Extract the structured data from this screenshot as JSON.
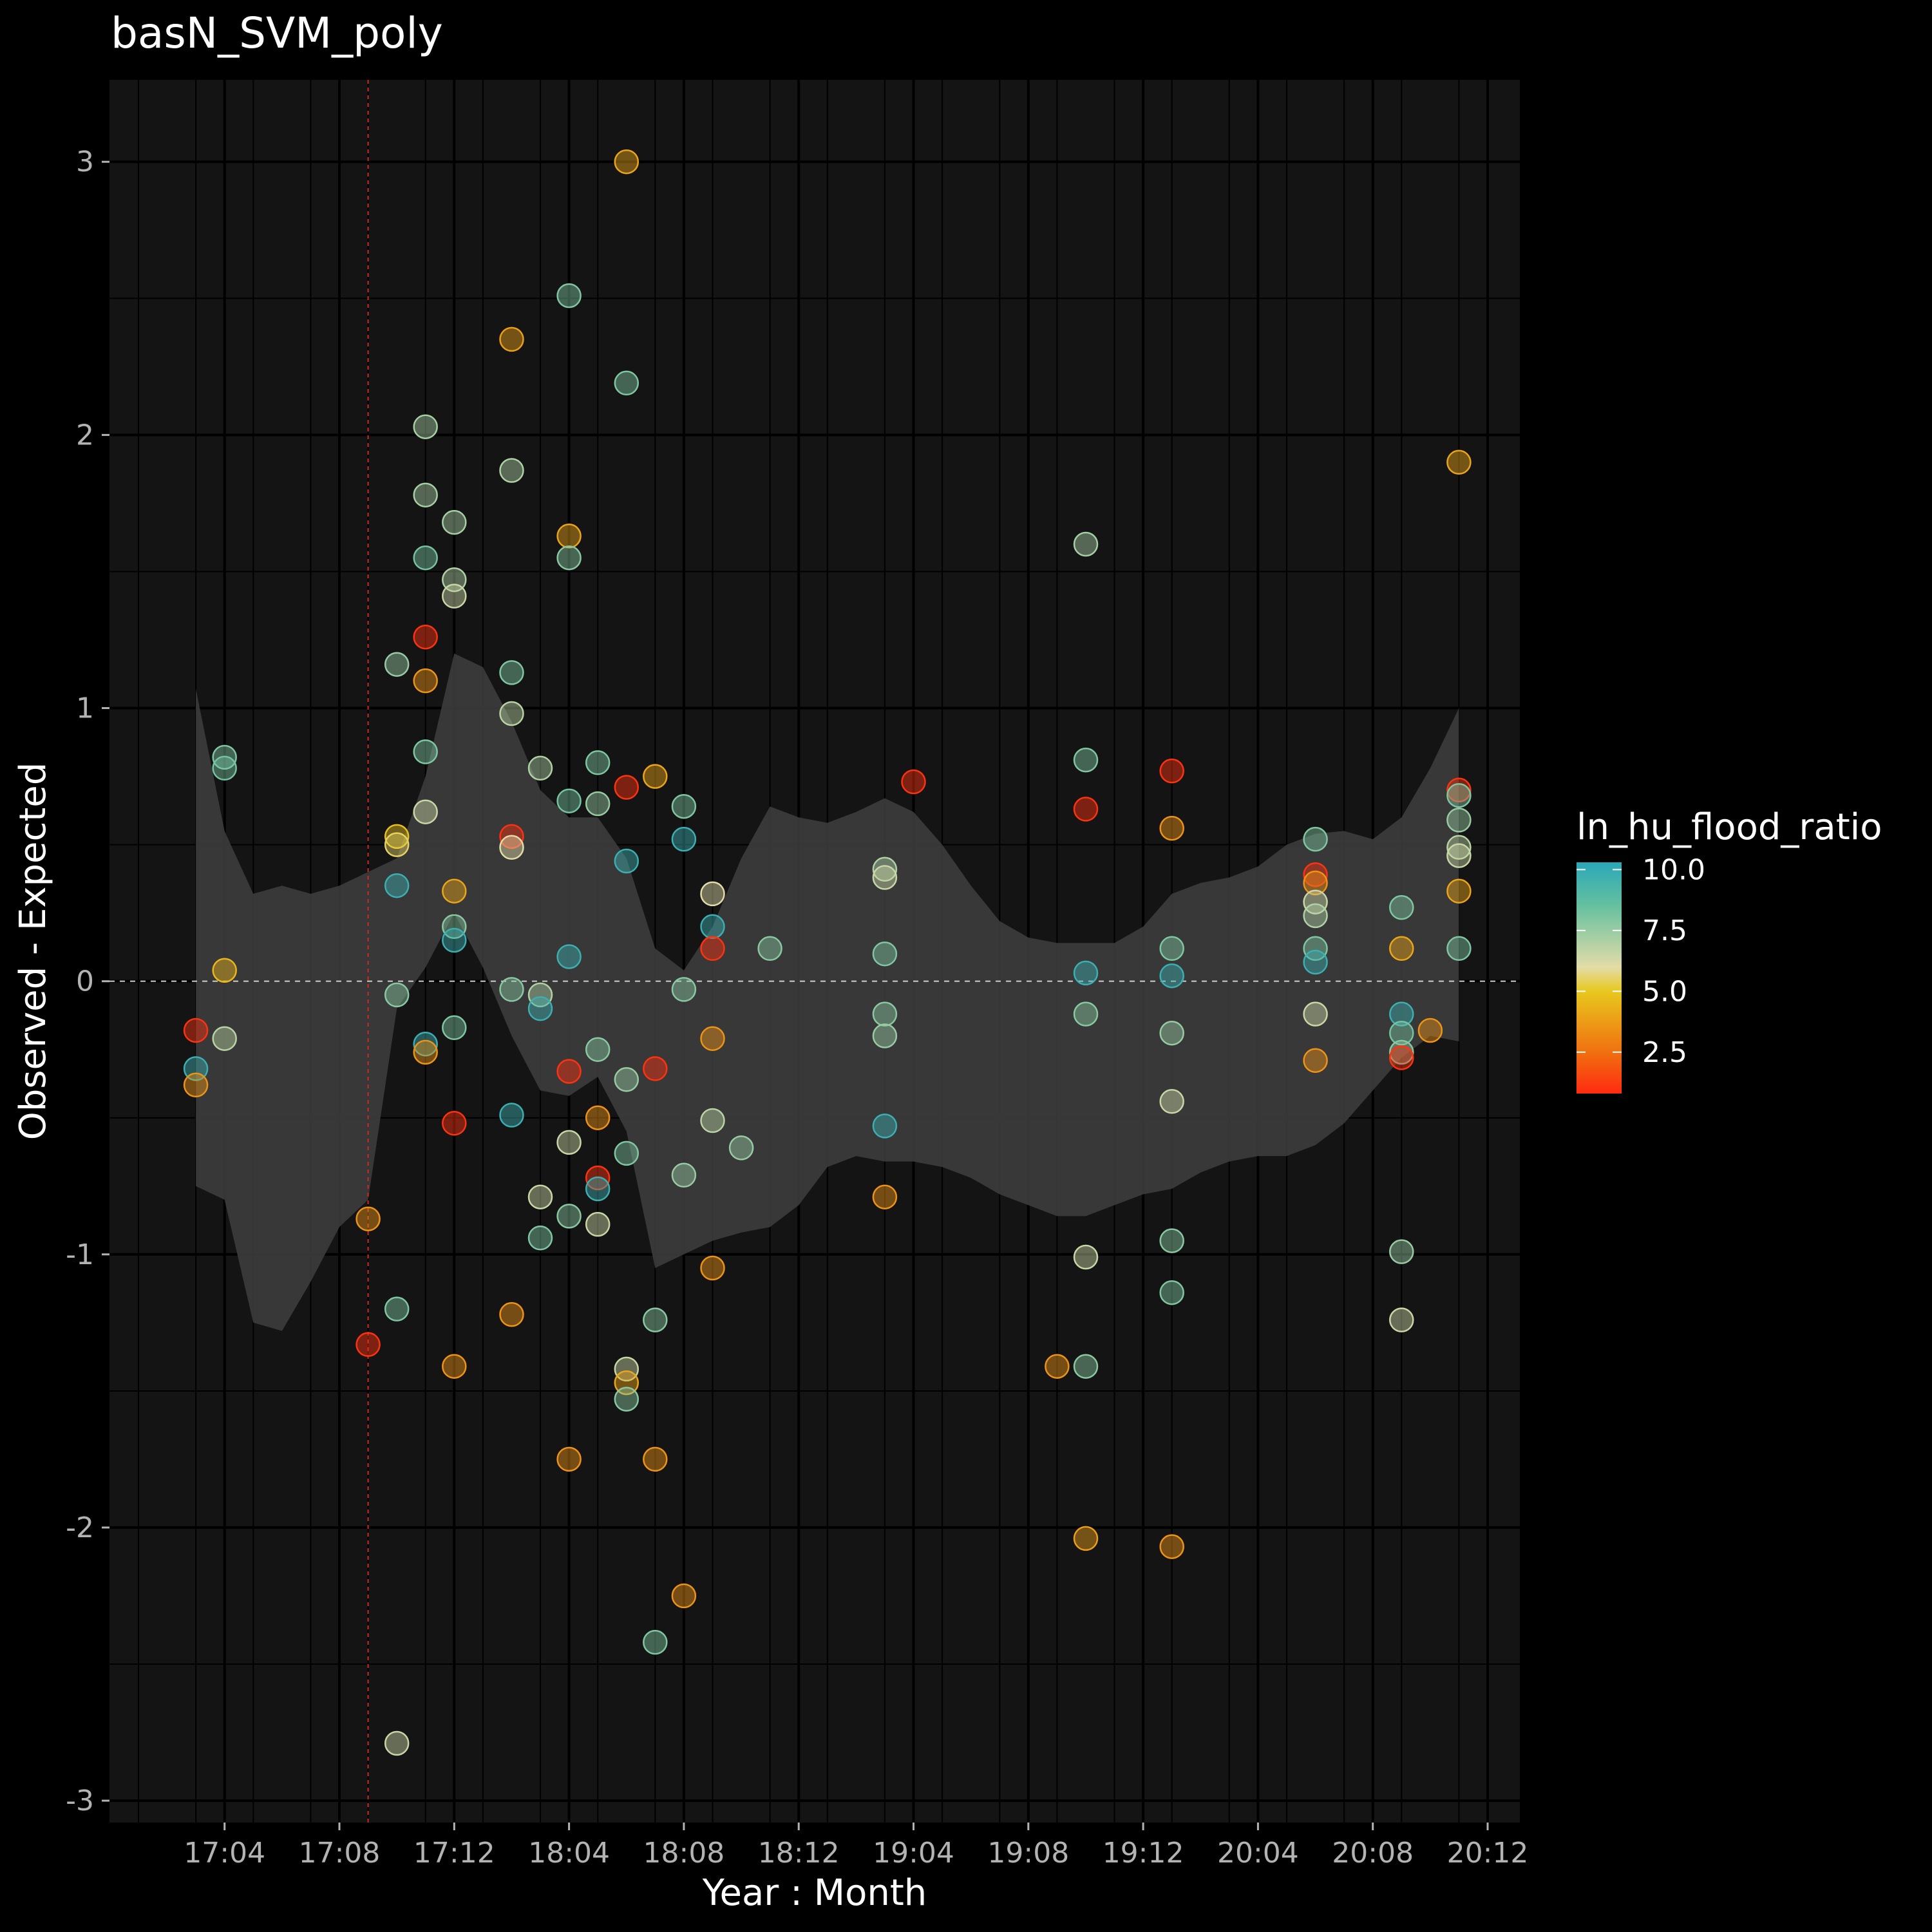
{
  "chart_data": {
    "type": "scatter",
    "title": "basN_SVM_poly",
    "xlabel": "Year : Month",
    "ylabel": "Observed - Expected",
    "x_tick_labels": [
      "17:04",
      "17:08",
      "17:12",
      "18:04",
      "18:08",
      "18:12",
      "19:04",
      "19:08",
      "19:12",
      "20:04",
      "20:08",
      "20:12"
    ],
    "x_ticks": [
      "2017-04",
      "2017-08",
      "2017-12",
      "2018-04",
      "2018-08",
      "2018-12",
      "2019-04",
      "2019-08",
      "2019-12",
      "2020-04",
      "2020-08",
      "2020-12"
    ],
    "xlim": [
      "2017-01",
      "2020-12"
    ],
    "y_ticks": [
      -3,
      -2,
      -1,
      0,
      1,
      2,
      3
    ],
    "y_tick_labels": [
      "-3",
      "-2",
      "-1",
      "0",
      "1",
      "2",
      "3"
    ],
    "ylim": [
      -3.08,
      3.3
    ],
    "grid": true,
    "reference_hline": 0,
    "reference_vline": "2017-09",
    "color_variable": "ln_hu_flood_ratio",
    "legend": {
      "title": "ln_hu_flood_ratio",
      "position": "right",
      "ticks": [
        2.5,
        5.0,
        7.5,
        10.0
      ],
      "tick_labels": [
        "2.5",
        "5.0",
        "7.5",
        "10.0"
      ],
      "range": [
        0.8,
        10.3
      ],
      "colors": [
        {
          "value": 0.8,
          "color": "#ff2a10"
        },
        {
          "value": 2.5,
          "color": "#f07010"
        },
        {
          "value": 5.0,
          "color": "#e8c81e"
        },
        {
          "value": 6.0,
          "color": "#e2dca8"
        },
        {
          "value": 8.5,
          "color": "#66c0a0"
        },
        {
          "value": 10.3,
          "color": "#2aa8b8"
        }
      ]
    },
    "band": [
      {
        "x": "2017-03",
        "lower": -0.75,
        "upper": 1.07
      },
      {
        "x": "2017-04",
        "lower": -0.8,
        "upper": 0.55
      },
      {
        "x": "2017-05",
        "lower": -1.25,
        "upper": 0.32
      },
      {
        "x": "2017-06",
        "lower": -1.28,
        "upper": 0.35
      },
      {
        "x": "2017-07",
        "lower": -1.1,
        "upper": 0.32
      },
      {
        "x": "2017-08",
        "lower": -0.9,
        "upper": 0.35
      },
      {
        "x": "2017-09",
        "lower": -0.8,
        "upper": 0.4
      },
      {
        "x": "2017-10",
        "lower": -0.1,
        "upper": 0.45
      },
      {
        "x": "2017-11",
        "lower": 0.05,
        "upper": 0.75
      },
      {
        "x": "2017-12",
        "lower": 0.25,
        "upper": 1.2
      },
      {
        "x": "2018-01",
        "lower": 0.05,
        "upper": 1.15
      },
      {
        "x": "2018-02",
        "lower": -0.2,
        "upper": 0.95
      },
      {
        "x": "2018-03",
        "lower": -0.4,
        "upper": 0.7
      },
      {
        "x": "2018-04",
        "lower": -0.42,
        "upper": 0.6
      },
      {
        "x": "2018-05",
        "lower": -0.35,
        "upper": 0.6
      },
      {
        "x": "2018-06",
        "lower": -0.55,
        "upper": 0.45
      },
      {
        "x": "2018-07",
        "lower": -1.05,
        "upper": 0.12
      },
      {
        "x": "2018-08",
        "lower": -1.0,
        "upper": 0.04
      },
      {
        "x": "2018-09",
        "lower": -0.95,
        "upper": 0.2
      },
      {
        "x": "2018-10",
        "lower": -0.92,
        "upper": 0.45
      },
      {
        "x": "2018-11",
        "lower": -0.9,
        "upper": 0.64
      },
      {
        "x": "2018-12",
        "lower": -0.82,
        "upper": 0.6
      },
      {
        "x": "2019-01",
        "lower": -0.68,
        "upper": 0.58
      },
      {
        "x": "2019-02",
        "lower": -0.64,
        "upper": 0.62
      },
      {
        "x": "2019-03",
        "lower": -0.66,
        "upper": 0.67
      },
      {
        "x": "2019-04",
        "lower": -0.66,
        "upper": 0.62
      },
      {
        "x": "2019-05",
        "lower": -0.68,
        "upper": 0.5
      },
      {
        "x": "2019-06",
        "lower": -0.72,
        "upper": 0.35
      },
      {
        "x": "2019-07",
        "lower": -0.78,
        "upper": 0.22
      },
      {
        "x": "2019-08",
        "lower": -0.82,
        "upper": 0.16
      },
      {
        "x": "2019-09",
        "lower": -0.86,
        "upper": 0.14
      },
      {
        "x": "2019-10",
        "lower": -0.86,
        "upper": 0.14
      },
      {
        "x": "2019-11",
        "lower": -0.82,
        "upper": 0.14
      },
      {
        "x": "2019-12",
        "lower": -0.78,
        "upper": 0.2
      },
      {
        "x": "2020-01",
        "lower": -0.76,
        "upper": 0.32
      },
      {
        "x": "2020-02",
        "lower": -0.7,
        "upper": 0.36
      },
      {
        "x": "2020-03",
        "lower": -0.66,
        "upper": 0.38
      },
      {
        "x": "2020-04",
        "lower": -0.64,
        "upper": 0.42
      },
      {
        "x": "2020-05",
        "lower": -0.64,
        "upper": 0.5
      },
      {
        "x": "2020-06",
        "lower": -0.6,
        "upper": 0.54
      },
      {
        "x": "2020-07",
        "lower": -0.52,
        "upper": 0.55
      },
      {
        "x": "2020-08",
        "lower": -0.4,
        "upper": 0.52
      },
      {
        "x": "2020-09",
        "lower": -0.28,
        "upper": 0.6
      },
      {
        "x": "2020-10",
        "lower": -0.2,
        "upper": 0.78
      },
      {
        "x": "2020-11",
        "lower": -0.22,
        "upper": 1.0
      }
    ],
    "points": [
      {
        "x": "2017-03",
        "y": -0.18,
        "c": 1.0
      },
      {
        "x": "2017-03",
        "y": -0.32,
        "c": 9.8
      },
      {
        "x": "2017-03",
        "y": -0.38,
        "c": 3.5
      },
      {
        "x": "2017-04",
        "y": 0.82,
        "c": 8.0
      },
      {
        "x": "2017-04",
        "y": 0.78,
        "c": 8.2
      },
      {
        "x": "2017-04",
        "y": 0.04,
        "c": 4.5
      },
      {
        "x": "2017-04",
        "y": -0.21,
        "c": 6.8
      },
      {
        "x": "2017-09",
        "y": -0.87,
        "c": 3.5
      },
      {
        "x": "2017-09",
        "y": -1.33,
        "c": 1.0
      },
      {
        "x": "2017-10",
        "y": 1.16,
        "c": 7.5
      },
      {
        "x": "2017-10",
        "y": 0.53,
        "c": 4.8
      },
      {
        "x": "2017-10",
        "y": 0.5,
        "c": 5.5
      },
      {
        "x": "2017-10",
        "y": 0.35,
        "c": 9.8
      },
      {
        "x": "2017-10",
        "y": -0.05,
        "c": 7.8
      },
      {
        "x": "2017-10",
        "y": -1.2,
        "c": 8.0
      },
      {
        "x": "2017-10",
        "y": -2.79,
        "c": 6.5
      },
      {
        "x": "2017-11",
        "y": 2.03,
        "c": 7.2
      },
      {
        "x": "2017-11",
        "y": 1.78,
        "c": 7.2
      },
      {
        "x": "2017-11",
        "y": 1.55,
        "c": 8.2
      },
      {
        "x": "2017-11",
        "y": 1.26,
        "c": 1.0
      },
      {
        "x": "2017-11",
        "y": 1.1,
        "c": 3.5
      },
      {
        "x": "2017-11",
        "y": 0.84,
        "c": 8.0
      },
      {
        "x": "2017-11",
        "y": 0.62,
        "c": 6.5
      },
      {
        "x": "2017-11",
        "y": -0.23,
        "c": 9.8
      },
      {
        "x": "2017-11",
        "y": -0.26,
        "c": 3.5
      },
      {
        "x": "2017-12",
        "y": 1.68,
        "c": 7.2
      },
      {
        "x": "2017-12",
        "y": 1.47,
        "c": 7.0
      },
      {
        "x": "2017-12",
        "y": 1.41,
        "c": 6.5
      },
      {
        "x": "2017-12",
        "y": 0.33,
        "c": 4.0
      },
      {
        "x": "2017-12",
        "y": 0.2,
        "c": 7.8
      },
      {
        "x": "2017-12",
        "y": 0.15,
        "c": 9.8
      },
      {
        "x": "2017-12",
        "y": -0.17,
        "c": 8.0
      },
      {
        "x": "2017-12",
        "y": -0.52,
        "c": 1.0
      },
      {
        "x": "2017-12",
        "y": -1.41,
        "c": 3.5
      },
      {
        "x": "2018-02",
        "y": 2.35,
        "c": 3.8
      },
      {
        "x": "2018-02",
        "y": 1.87,
        "c": 7.0
      },
      {
        "x": "2018-02",
        "y": 1.13,
        "c": 8.0
      },
      {
        "x": "2018-02",
        "y": 0.98,
        "c": 6.8
      },
      {
        "x": "2018-02",
        "y": 0.53,
        "c": 1.0
      },
      {
        "x": "2018-02",
        "y": 0.49,
        "c": 6.0
      },
      {
        "x": "2018-02",
        "y": -0.03,
        "c": 7.8
      },
      {
        "x": "2018-02",
        "y": -0.49,
        "c": 9.8
      },
      {
        "x": "2018-02",
        "y": -1.22,
        "c": 3.5
      },
      {
        "x": "2018-03",
        "y": 0.78,
        "c": 7.0
      },
      {
        "x": "2018-03",
        "y": -0.05,
        "c": 7.0
      },
      {
        "x": "2018-03",
        "y": -0.1,
        "c": 9.8
      },
      {
        "x": "2018-03",
        "y": -0.79,
        "c": 6.5
      },
      {
        "x": "2018-03",
        "y": -0.94,
        "c": 8.0
      },
      {
        "x": "2018-04",
        "y": 2.51,
        "c": 8.0
      },
      {
        "x": "2018-04",
        "y": 1.63,
        "c": 4.0
      },
      {
        "x": "2018-04",
        "y": 1.55,
        "c": 7.8
      },
      {
        "x": "2018-04",
        "y": 0.66,
        "c": 8.2
      },
      {
        "x": "2018-04",
        "y": 0.09,
        "c": 9.8
      },
      {
        "x": "2018-04",
        "y": -0.33,
        "c": 1.0
      },
      {
        "x": "2018-04",
        "y": -0.59,
        "c": 6.5
      },
      {
        "x": "2018-04",
        "y": -0.86,
        "c": 7.8
      },
      {
        "x": "2018-04",
        "y": -1.75,
        "c": 3.5
      },
      {
        "x": "2018-05",
        "y": 0.8,
        "c": 8.0
      },
      {
        "x": "2018-05",
        "y": 0.65,
        "c": 7.5
      },
      {
        "x": "2018-05",
        "y": -0.25,
        "c": 7.8
      },
      {
        "x": "2018-05",
        "y": -0.5,
        "c": 3.5
      },
      {
        "x": "2018-05",
        "y": -0.72,
        "c": 1.0
      },
      {
        "x": "2018-05",
        "y": -0.76,
        "c": 9.8
      },
      {
        "x": "2018-05",
        "y": -0.89,
        "c": 6.5
      },
      {
        "x": "2018-06",
        "y": 3.0,
        "c": 4.0
      },
      {
        "x": "2018-06",
        "y": 2.19,
        "c": 8.0
      },
      {
        "x": "2018-06",
        "y": 0.71,
        "c": 1.0
      },
      {
        "x": "2018-06",
        "y": 0.44,
        "c": 9.8
      },
      {
        "x": "2018-06",
        "y": -0.36,
        "c": 7.5
      },
      {
        "x": "2018-06",
        "y": -0.63,
        "c": 8.0
      },
      {
        "x": "2018-06",
        "y": -1.42,
        "c": 6.5
      },
      {
        "x": "2018-06",
        "y": -1.47,
        "c": 4.0
      },
      {
        "x": "2018-06",
        "y": -1.53,
        "c": 7.8
      },
      {
        "x": "2018-07",
        "y": 0.75,
        "c": 4.0
      },
      {
        "x": "2018-07",
        "y": -0.32,
        "c": 1.0
      },
      {
        "x": "2018-07",
        "y": -1.24,
        "c": 7.8
      },
      {
        "x": "2018-07",
        "y": -1.75,
        "c": 3.5
      },
      {
        "x": "2018-07",
        "y": -2.42,
        "c": 8.0
      },
      {
        "x": "2018-08",
        "y": 0.64,
        "c": 8.0
      },
      {
        "x": "2018-08",
        "y": 0.52,
        "c": 9.8
      },
      {
        "x": "2018-08",
        "y": -0.03,
        "c": 7.8
      },
      {
        "x": "2018-08",
        "y": -0.71,
        "c": 7.5
      },
      {
        "x": "2018-08",
        "y": -2.25,
        "c": 3.5
      },
      {
        "x": "2018-09",
        "y": 0.32,
        "c": 6.0
      },
      {
        "x": "2018-09",
        "y": 0.2,
        "c": 9.8
      },
      {
        "x": "2018-09",
        "y": 0.12,
        "c": 1.0
      },
      {
        "x": "2018-09",
        "y": -0.21,
        "c": 3.5
      },
      {
        "x": "2018-09",
        "y": -0.51,
        "c": 6.8
      },
      {
        "x": "2018-09",
        "y": -1.05,
        "c": 3.5
      },
      {
        "x": "2018-10",
        "y": -0.61,
        "c": 7.5
      },
      {
        "x": "2018-11",
        "y": 0.12,
        "c": 7.8
      },
      {
        "x": "2019-03",
        "y": 0.41,
        "c": 7.0
      },
      {
        "x": "2019-03",
        "y": 0.38,
        "c": 6.5
      },
      {
        "x": "2019-03",
        "y": 0.1,
        "c": 8.0
      },
      {
        "x": "2019-03",
        "y": -0.12,
        "c": 7.8
      },
      {
        "x": "2019-03",
        "y": -0.2,
        "c": 7.5
      },
      {
        "x": "2019-03",
        "y": -0.53,
        "c": 9.8
      },
      {
        "x": "2019-03",
        "y": -0.79,
        "c": 3.5
      },
      {
        "x": "2019-04",
        "y": 0.73,
        "c": 1.0
      },
      {
        "x": "2019-09",
        "y": -1.41,
        "c": 3.5
      },
      {
        "x": "2019-10",
        "y": 1.6,
        "c": 7.2
      },
      {
        "x": "2019-10",
        "y": 0.81,
        "c": 8.0
      },
      {
        "x": "2019-10",
        "y": 0.63,
        "c": 1.0
      },
      {
        "x": "2019-10",
        "y": 0.03,
        "c": 9.8
      },
      {
        "x": "2019-10",
        "y": -0.12,
        "c": 7.8
      },
      {
        "x": "2019-10",
        "y": -1.01,
        "c": 6.5
      },
      {
        "x": "2019-10",
        "y": -1.41,
        "c": 7.8
      },
      {
        "x": "2019-10",
        "y": -2.04,
        "c": 3.8
      },
      {
        "x": "2020-01",
        "y": 0.77,
        "c": 1.0
      },
      {
        "x": "2020-01",
        "y": 0.56,
        "c": 3.5
      },
      {
        "x": "2020-01",
        "y": 0.12,
        "c": 8.0
      },
      {
        "x": "2020-01",
        "y": 0.02,
        "c": 9.8
      },
      {
        "x": "2020-01",
        "y": -0.19,
        "c": 7.5
      },
      {
        "x": "2020-01",
        "y": -0.44,
        "c": 6.5
      },
      {
        "x": "2020-01",
        "y": -0.95,
        "c": 7.8
      },
      {
        "x": "2020-01",
        "y": -1.14,
        "c": 8.0
      },
      {
        "x": "2020-01",
        "y": -2.07,
        "c": 3.5
      },
      {
        "x": "2020-06",
        "y": 0.52,
        "c": 8.0
      },
      {
        "x": "2020-06",
        "y": 0.39,
        "c": 1.0
      },
      {
        "x": "2020-06",
        "y": 0.36,
        "c": 3.5
      },
      {
        "x": "2020-06",
        "y": 0.29,
        "c": 6.5
      },
      {
        "x": "2020-06",
        "y": 0.24,
        "c": 7.0
      },
      {
        "x": "2020-06",
        "y": 0.12,
        "c": 8.0
      },
      {
        "x": "2020-06",
        "y": 0.07,
        "c": 9.8
      },
      {
        "x": "2020-06",
        "y": -0.12,
        "c": 6.5
      },
      {
        "x": "2020-06",
        "y": -0.29,
        "c": 3.5
      },
      {
        "x": "2020-09",
        "y": 0.27,
        "c": 8.0
      },
      {
        "x": "2020-09",
        "y": 0.12,
        "c": 4.0
      },
      {
        "x": "2020-09",
        "y": -0.12,
        "c": 9.8
      },
      {
        "x": "2020-09",
        "y": -0.19,
        "c": 8.2
      },
      {
        "x": "2020-09",
        "y": -0.26,
        "c": 7.8
      },
      {
        "x": "2020-09",
        "y": -0.28,
        "c": 1.0
      },
      {
        "x": "2020-09",
        "y": -0.99,
        "c": 7.5
      },
      {
        "x": "2020-09",
        "y": -1.24,
        "c": 6.5
      },
      {
        "x": "2020-10",
        "y": -0.18,
        "c": 3.5
      },
      {
        "x": "2020-11",
        "y": 1.9,
        "c": 4.0
      },
      {
        "x": "2020-11",
        "y": 0.7,
        "c": 1.0
      },
      {
        "x": "2020-11",
        "y": 0.68,
        "c": 8.0
      },
      {
        "x": "2020-11",
        "y": 0.59,
        "c": 7.5
      },
      {
        "x": "2020-11",
        "y": 0.49,
        "c": 6.8
      },
      {
        "x": "2020-11",
        "y": 0.46,
        "c": 6.5
      },
      {
        "x": "2020-11",
        "y": 0.33,
        "c": 4.0
      },
      {
        "x": "2020-11",
        "y": 0.12,
        "c": 8.0
      }
    ]
  }
}
